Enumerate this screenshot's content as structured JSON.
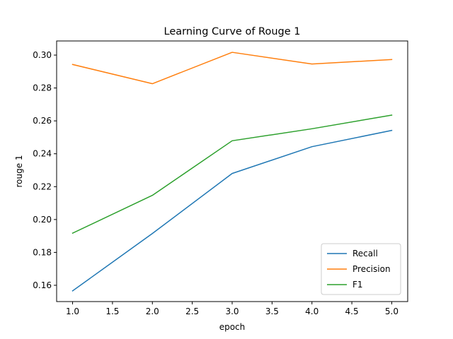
{
  "chart_data": {
    "type": "line",
    "title": "Learning Curve of Rouge 1",
    "xlabel": "epoch",
    "ylabel": "rouge 1",
    "x": [
      1.0,
      2.0,
      3.0,
      4.0,
      5.0
    ],
    "xlim": [
      0.8,
      5.2
    ],
    "ylim": [
      0.1501,
      0.3086
    ],
    "xticks": [
      "1.0",
      "1.5",
      "2.0",
      "2.5",
      "3.0",
      "3.5",
      "4.0",
      "4.5",
      "5.0"
    ],
    "yticks": [
      "0.16",
      "0.18",
      "0.20",
      "0.22",
      "0.24",
      "0.26",
      "0.28",
      "0.30"
    ],
    "grid": false,
    "legend_position": "lower right",
    "series": [
      {
        "name": "Recall",
        "color": "#1f77b4",
        "values": [
          0.1566,
          0.1915,
          0.228,
          0.2443,
          0.2542
        ]
      },
      {
        "name": "Precision",
        "color": "#ff7f0e",
        "values": [
          0.2943,
          0.2826,
          0.3017,
          0.2946,
          0.2973
        ]
      },
      {
        "name": "F1",
        "color": "#2ca02c",
        "values": [
          0.1917,
          0.2147,
          0.2479,
          0.2552,
          0.2635
        ]
      }
    ]
  }
}
